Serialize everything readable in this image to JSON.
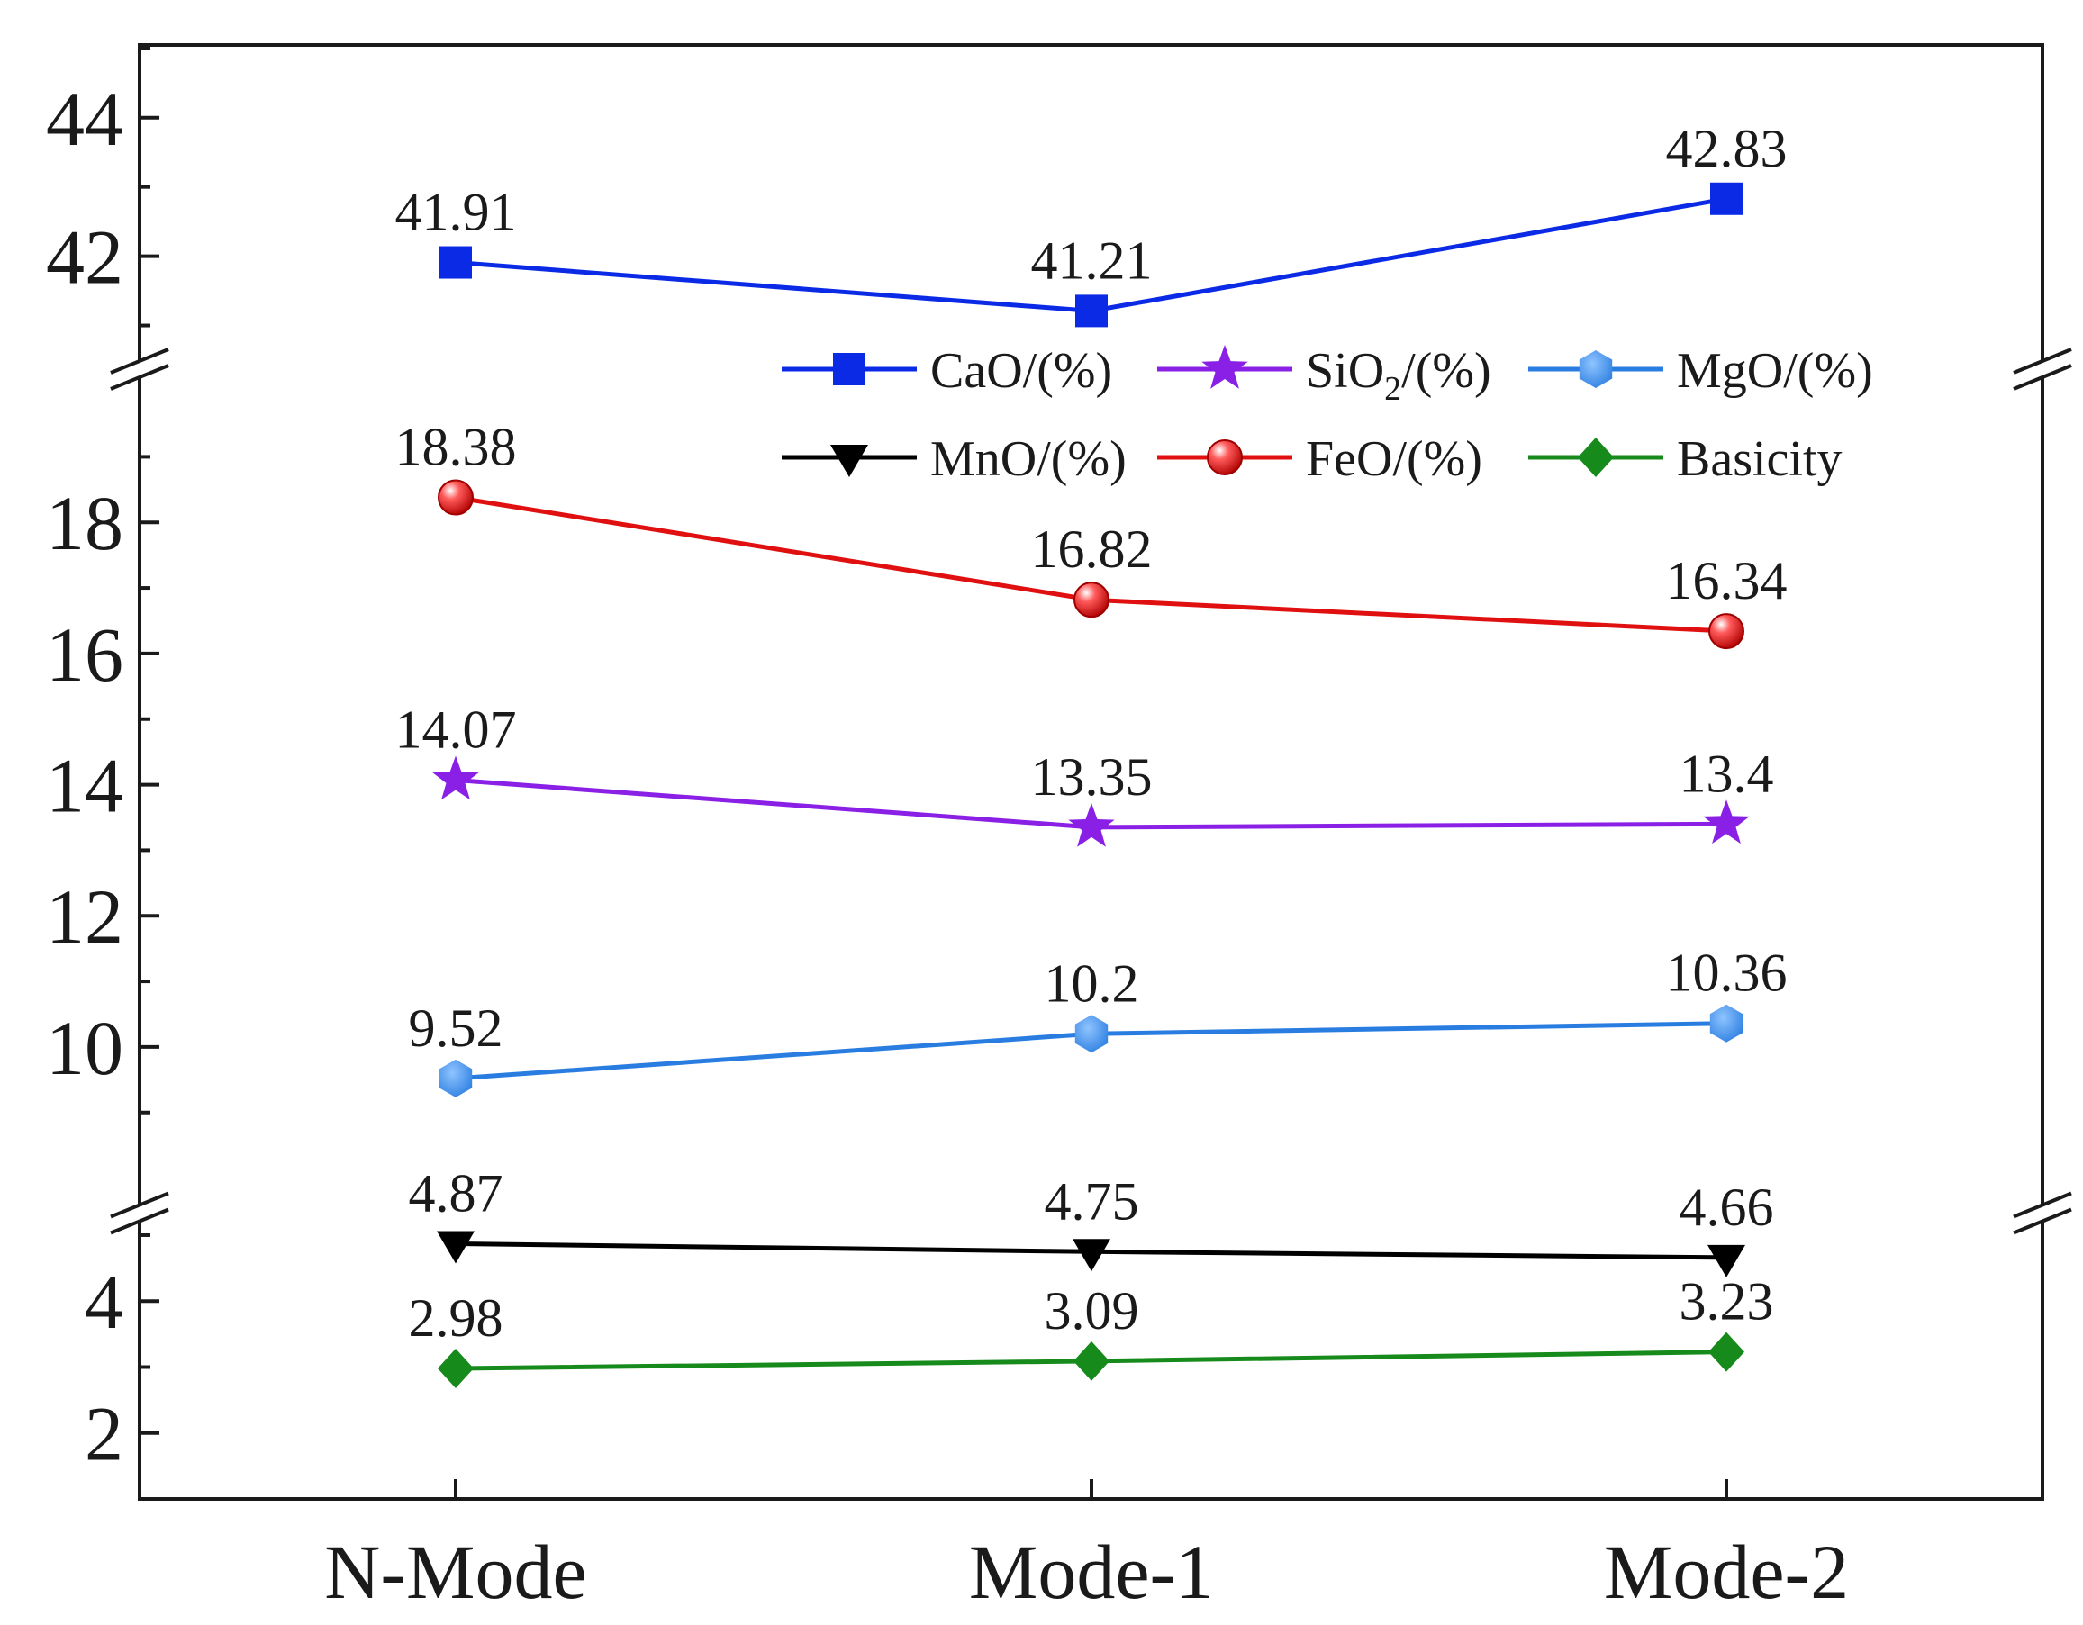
{
  "chart_data": {
    "type": "line",
    "title": "",
    "xlabel": "",
    "ylabel": "",
    "categories": [
      "N-Mode",
      "Mode-1",
      "Mode-2"
    ],
    "y_axis_segments": [
      {
        "range": [
          1,
          5.3
        ],
        "ticks": [
          2,
          4
        ],
        "minor_ticks": [
          1,
          3,
          5
        ]
      },
      {
        "range": [
          7.5,
          20.2
        ],
        "ticks": [
          10,
          12,
          14,
          16,
          18
        ],
        "minor_ticks": [
          9,
          11,
          13,
          15,
          17,
          19
        ]
      },
      {
        "range": [
          40.5,
          45.05
        ],
        "ticks": [
          42,
          44
        ],
        "minor_ticks": [
          41,
          43,
          45
        ]
      }
    ],
    "tick_labels": {
      "2": "2",
      "4": "4",
      "10": "10",
      "12": "12",
      "14": "14",
      "16": "16",
      "18": "18",
      "42": "42",
      "44": "44"
    },
    "series": [
      {
        "name": "CaO/(%)",
        "color": "#0a2ae6",
        "marker": "square",
        "values": [
          41.91,
          41.21,
          42.83
        ],
        "labels": [
          "41.91",
          "41.21",
          "42.83"
        ]
      },
      {
        "name": "SiO2/(%)",
        "color": "#8a1fe6",
        "marker": "star",
        "values": [
          14.07,
          13.35,
          13.4
        ],
        "labels": [
          "14.07",
          "13.35",
          "13.4"
        ]
      },
      {
        "name": "MgO/(%)",
        "color": "#2a7de0",
        "marker": "hexagon",
        "values": [
          9.52,
          10.2,
          10.36
        ],
        "labels": [
          "9.52",
          "10.2",
          "10.36"
        ]
      },
      {
        "name": "MnO/(%)",
        "color": "#000000",
        "marker": "triangle-down",
        "values": [
          4.87,
          4.75,
          4.66
        ],
        "labels": [
          "4.87",
          "4.75",
          "4.66"
        ]
      },
      {
        "name": "FeO/(%)",
        "color": "#e01010",
        "marker": "sphere",
        "values": [
          18.38,
          16.82,
          16.34
        ],
        "labels": [
          "18.38",
          "16.82",
          "16.34"
        ]
      },
      {
        "name": "Basicity",
        "color": "#168a1a",
        "marker": "diamond",
        "values": [
          2.98,
          3.09,
          3.23
        ],
        "labels": [
          "2.98",
          "3.09",
          "3.23"
        ]
      }
    ],
    "legend": {
      "placement": "upper-right",
      "columns": 3,
      "entries": [
        {
          "series": 0,
          "label": "CaO/(%)"
        },
        {
          "series": 1,
          "label": "SiO",
          "sub": "2",
          "suffix": "/(%)"
        },
        {
          "series": 2,
          "label": "MgO/(%)"
        },
        {
          "series": 3,
          "label": "MnO/(%)"
        },
        {
          "series": 4,
          "label": "FeO/(%)"
        },
        {
          "series": 5,
          "label": "Basicity"
        }
      ]
    },
    "grid": false
  }
}
